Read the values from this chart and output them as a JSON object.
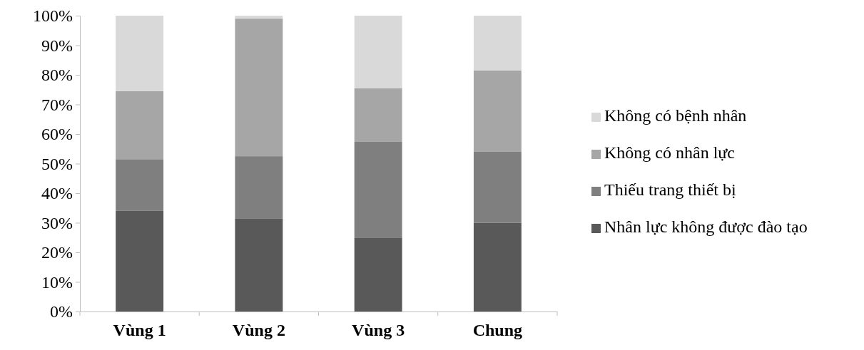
{
  "chart_data": {
    "type": "bar",
    "stacked": true,
    "categories": [
      "Vùng 1",
      "Vùng 2",
      "Vùng 3",
      "Chung"
    ],
    "series": [
      {
        "name": "Nhân lực không được đào tạo",
        "color": "#595959",
        "values": [
          34,
          31.5,
          25,
          30
        ]
      },
      {
        "name": "Thiếu trang thiết bị",
        "color": "#7f7f7f",
        "values": [
          17.5,
          21,
          32.5,
          24
        ]
      },
      {
        "name": "Không có nhân lực",
        "color": "#a6a6a6",
        "values": [
          23,
          46.5,
          18,
          27.5
        ]
      },
      {
        "name": "Không có bệnh nhân",
        "color": "#d9d9d9",
        "values": [
          25.5,
          1,
          24.5,
          18.5
        ]
      }
    ],
    "ylim": [
      0,
      100
    ],
    "yticks": [
      {
        "value": 0,
        "label": "0%"
      },
      {
        "value": 10,
        "label": "10%"
      },
      {
        "value": 20,
        "label": "20%"
      },
      {
        "value": 30,
        "label": "30%"
      },
      {
        "value": 40,
        "label": "40%"
      },
      {
        "value": 50,
        "label": "50%"
      },
      {
        "value": 60,
        "label": "60%"
      },
      {
        "value": 70,
        "label": "70%"
      },
      {
        "value": 80,
        "label": "80%"
      },
      {
        "value": 90,
        "label": "90%"
      },
      {
        "value": 100,
        "label": "100%"
      }
    ],
    "legend": "right",
    "grid": false
  }
}
